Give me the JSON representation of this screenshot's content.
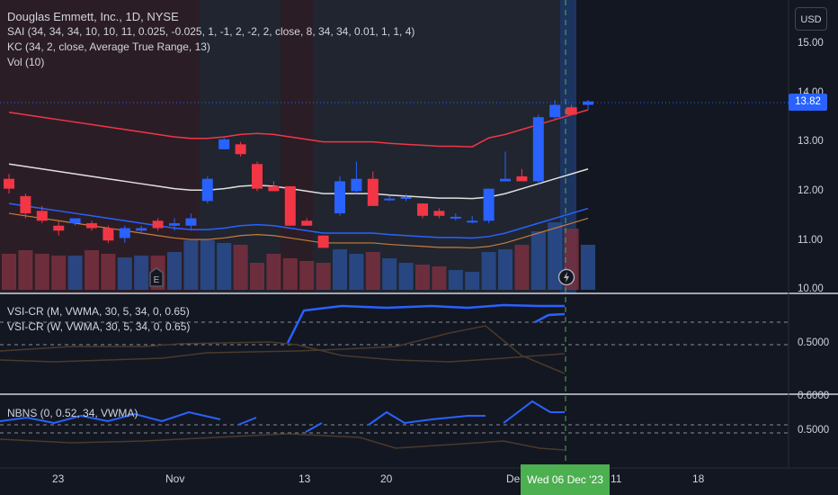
{
  "legend": {
    "main_title": "Douglas Emmett, Inc., 1D, NYSE",
    "indicators": [
      "SAI (34, 34, 34, 10, 10, 11, 0.025, -0.025, 1, -1, 2, -2, 2, close, 8, 34, 34, 0.01, 1, 1, 4)",
      "KC (34, 2, close, Average True Range, 13)",
      "Vol (10)"
    ],
    "pane2": [
      "VSI-CR (M, VWMA, 30, 5, 34, 0, 0.65)",
      "VSI-CR (W, VWMA, 30, 5, 34, 0, 0.65)"
    ],
    "pane3": [
      "NBNS (0, 0.52, 34, VWMA)"
    ]
  },
  "price_axis": {
    "currency": "USD",
    "ticks": [
      "15.00",
      "14.00",
      "13.00",
      "12.00",
      "11.00",
      "10.00"
    ],
    "pane2_ticks": [
      "0.5000"
    ],
    "pane3_ticks": [
      "0.6000",
      "0.5000"
    ],
    "last_price": "13.82"
  },
  "time_axis": {
    "labels": [
      "23",
      "Nov",
      "13",
      "20",
      "Dec",
      "11",
      "18"
    ],
    "crosshair_date": "Wed 06 Dec '23"
  },
  "markers": {
    "earnings_icon": "E"
  },
  "colors": {
    "up": "#2962ff",
    "down": "#f23645",
    "keltner_mid": "#e0e0e0",
    "keltner_band": "#f23645",
    "crosshair": "#4caf50"
  },
  "chart_data": {
    "type": "candlestick",
    "x": [
      "Oct 17",
      "Oct 18",
      "Oct 19",
      "Oct 20",
      "Oct 23",
      "Oct 24",
      "Oct 25",
      "Oct 26",
      "Oct 27",
      "Oct 30",
      "Oct 31",
      "Nov 1",
      "Nov 2",
      "Nov 3",
      "Nov 6",
      "Nov 7",
      "Nov 8",
      "Nov 9",
      "Nov 10",
      "Nov 13",
      "Nov 14",
      "Nov 15",
      "Nov 16",
      "Nov 17",
      "Nov 20",
      "Nov 21",
      "Nov 22",
      "Nov 24",
      "Nov 27",
      "Nov 28",
      "Nov 29",
      "Nov 30",
      "Dec 1",
      "Dec 4",
      "Dec 5",
      "Dec 6"
    ],
    "series": [
      {
        "values": [
          {
            "o": 12.25,
            "h": 12.35,
            "l": 11.95,
            "c": 12.05
          },
          {
            "o": 11.9,
            "h": 11.95,
            "l": 11.45,
            "c": 11.55
          },
          {
            "o": 11.6,
            "h": 11.7,
            "l": 11.35,
            "c": 11.4
          },
          {
            "o": 11.3,
            "h": 11.4,
            "l": 11.1,
            "c": 11.2
          },
          {
            "o": 11.35,
            "h": 11.45,
            "l": 11.3,
            "c": 11.45
          },
          {
            "o": 11.35,
            "h": 11.4,
            "l": 11.2,
            "c": 11.25
          },
          {
            "o": 11.25,
            "h": 11.3,
            "l": 10.95,
            "c": 11.0
          },
          {
            "o": 11.05,
            "h": 11.3,
            "l": 10.95,
            "c": 11.25
          },
          {
            "o": 11.2,
            "h": 11.3,
            "l": 11.15,
            "c": 11.25
          },
          {
            "o": 11.4,
            "h": 11.45,
            "l": 11.2,
            "c": 11.25
          },
          {
            "o": 11.3,
            "h": 11.45,
            "l": 11.2,
            "c": 11.35
          },
          {
            "o": 11.3,
            "h": 11.55,
            "l": 11.2,
            "c": 11.45
          },
          {
            "o": 11.8,
            "h": 12.3,
            "l": 11.75,
            "c": 12.25
          },
          {
            "o": 12.85,
            "h": 13.1,
            "l": 12.85,
            "c": 13.05
          },
          {
            "o": 12.95,
            "h": 13.0,
            "l": 12.7,
            "c": 12.75
          },
          {
            "o": 12.55,
            "h": 12.6,
            "l": 12.0,
            "c": 12.05
          },
          {
            "o": 12.1,
            "h": 12.2,
            "l": 12.05,
            "c": 12.0
          },
          {
            "o": 12.1,
            "h": 12.1,
            "l": 11.3,
            "c": 11.3
          },
          {
            "o": 11.4,
            "h": 11.45,
            "l": 11.3,
            "c": 11.3
          },
          {
            "o": 11.1,
            "h": 11.1,
            "l": 10.85,
            "c": 10.85
          },
          {
            "o": 11.55,
            "h": 12.3,
            "l": 11.5,
            "c": 12.2
          },
          {
            "o": 12.0,
            "h": 12.6,
            "l": 11.95,
            "c": 12.25
          },
          {
            "o": 12.25,
            "h": 12.4,
            "l": 11.7,
            "c": 11.7
          },
          {
            "o": 11.85,
            "h": 11.9,
            "l": 11.8,
            "c": 11.85
          },
          {
            "o": 11.85,
            "h": 11.95,
            "l": 11.8,
            "c": 11.88
          },
          {
            "o": 11.75,
            "h": 11.75,
            "l": 11.45,
            "c": 11.5
          },
          {
            "o": 11.6,
            "h": 11.65,
            "l": 11.45,
            "c": 11.5
          },
          {
            "o": 11.45,
            "h": 11.55,
            "l": 11.4,
            "c": 11.48
          },
          {
            "o": 11.4,
            "h": 11.5,
            "l": 11.35,
            "c": 11.4
          },
          {
            "o": 11.4,
            "h": 12.05,
            "l": 11.35,
            "c": 12.05
          },
          {
            "o": 12.2,
            "h": 12.8,
            "l": 12.2,
            "c": 12.25
          },
          {
            "o": 12.3,
            "h": 12.45,
            "l": 12.2,
            "c": 12.2
          },
          {
            "o": 12.2,
            "h": 13.55,
            "l": 12.15,
            "c": 13.5
          },
          {
            "o": 13.5,
            "h": 13.85,
            "l": 13.45,
            "c": 13.75
          },
          {
            "o": 13.7,
            "h": 13.75,
            "l": 13.55,
            "c": 13.55
          },
          {
            "o": 13.75,
            "h": 13.85,
            "l": 13.65,
            "c": 13.82
          }
        ]
      }
    ],
    "ylim": [
      10.0,
      15.5
    ]
  }
}
